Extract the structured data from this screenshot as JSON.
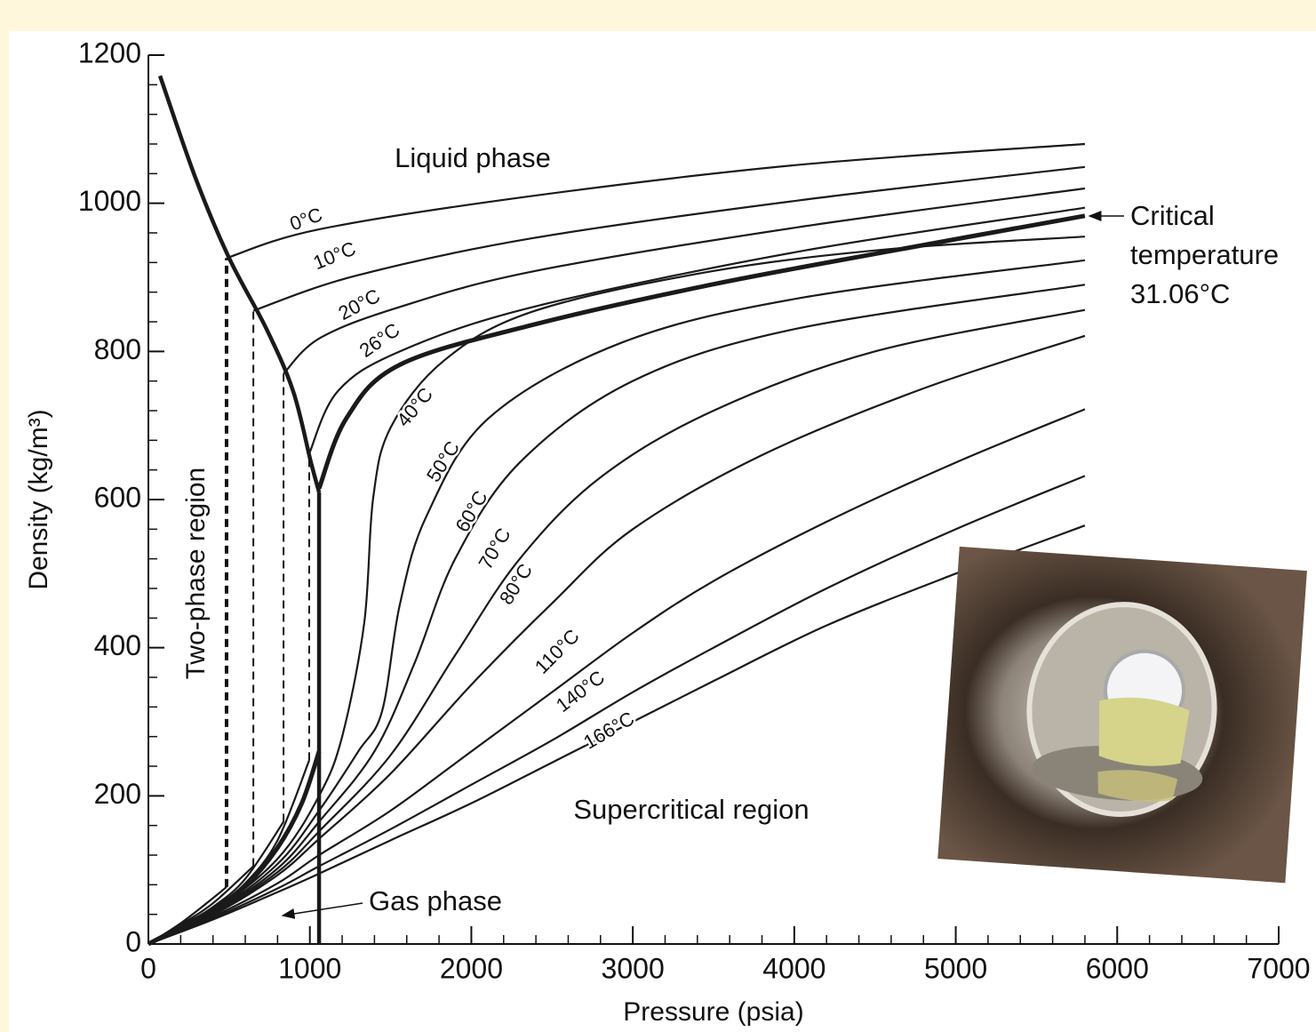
{
  "chart_data": {
    "type": "line",
    "xlabel": "Pressure (psia)",
    "ylabel": "Density (kg/m³)",
    "xlim": [
      0,
      7000
    ],
    "ylim": [
      0,
      1200
    ],
    "xticks": [
      0,
      1000,
      2000,
      3000,
      4000,
      5000,
      6000,
      7000
    ],
    "yticks": [
      0,
      200,
      400,
      600,
      800,
      1000,
      1200
    ],
    "xticks_minor": [
      200,
      400,
      600,
      800,
      1200,
      1400,
      1600,
      1800,
      2200,
      2400,
      2600,
      2800,
      3200,
      3400,
      3600,
      3800,
      4200,
      4400,
      4600,
      4800,
      5200,
      5400,
      5600,
      5800,
      6200,
      6400,
      6600,
      6800
    ],
    "yticks_minor": [
      40,
      80,
      120,
      160,
      240,
      280,
      320,
      360,
      440,
      480,
      520,
      560,
      640,
      680,
      720,
      760,
      840,
      880,
      920,
      960,
      1040,
      1080,
      1120,
      1160
    ],
    "color": "#1a1a1a",
    "series": [
      {
        "name": "0°C",
        "x": [
          0,
          200,
          400,
          484,
          null,
          484,
          1062,
          2383,
          4034,
          5800
        ],
        "values": [
          0,
          28,
          62,
          77,
          null,
          926,
          965,
          1010,
          1052,
          1080
        ]
      },
      {
        "name": "10°C",
        "x": [
          0,
          200,
          400,
          650,
          null,
          650,
          1282,
          2383,
          4034,
          5800
        ],
        "values": [
          0,
          26,
          55,
          105,
          null,
          855,
          902,
          953,
          1004,
          1049
        ]
      },
      {
        "name": "20°C",
        "x": [
          0,
          200,
          400,
          600,
          837,
          null,
          837,
          1062,
          1557,
          2383,
          4034,
          5800
        ],
        "values": [
          0,
          24,
          50,
          88,
          165,
          null,
          770,
          818,
          860,
          908,
          968,
          1020
        ]
      },
      {
        "name": "26°C",
        "x": [
          0,
          200,
          400,
          600,
          800,
          996,
          null,
          996,
          1172,
          1557,
          2383,
          4034,
          5800
        ],
        "values": [
          0,
          23,
          48,
          82,
          140,
          248,
          null,
          662,
          746,
          800,
          860,
          935,
          994
        ]
      },
      {
        "name": "40°C",
        "x": [
          0,
          400,
          800,
          1057,
          1200,
          1337,
          1392,
          1502,
          1833,
          2383,
          3484,
          4584,
          5800
        ],
        "values": [
          0,
          44,
          115,
          200,
          280,
          434,
          602,
          698,
          788,
          854,
          908,
          938,
          955
        ]
      },
      {
        "name": "50°C",
        "x": [
          0,
          400,
          800,
          1057,
          1300,
          1447,
          1557,
          1723,
          2108,
          2933,
          4034,
          5800
        ],
        "values": [
          0,
          42,
          108,
          180,
          260,
          314,
          458,
          578,
          710,
          812,
          872,
          923
        ]
      },
      {
        "name": "60°C",
        "x": [
          0,
          400,
          800,
          1057,
          1400,
          1650,
          1900,
          2300,
          3000,
          4000,
          5800
        ],
        "values": [
          0,
          41,
          102,
          165,
          260,
          380,
          520,
          650,
          760,
          830,
          890
        ]
      },
      {
        "name": "70°C",
        "x": [
          0,
          400,
          800,
          1057,
          1500,
          1900,
          2300,
          2800,
          3500,
          4500,
          5800
        ],
        "values": [
          0,
          40,
          97,
          152,
          255,
          390,
          520,
          630,
          720,
          800,
          856
        ]
      },
      {
        "name": "80°C",
        "x": [
          0,
          400,
          800,
          1057,
          1500,
          2000,
          2500,
          3000,
          3800,
          4800,
          5800
        ],
        "values": [
          0,
          39,
          93,
          142,
          230,
          350,
          460,
          560,
          660,
          750,
          821
        ]
      },
      {
        "name": "110°C",
        "x": [
          0,
          400,
          800,
          1057,
          1500,
          2000,
          2500,
          3000,
          3500,
          4200,
          5000,
          5800
        ],
        "values": [
          0,
          37,
          82,
          120,
          180,
          260,
          340,
          420,
          490,
          570,
          650,
          722
        ]
      },
      {
        "name": "140°C",
        "x": [
          0,
          400,
          800,
          1057,
          1500,
          2000,
          2500,
          3000,
          3500,
          4200,
          5000,
          5800
        ],
        "values": [
          0,
          35,
          75,
          105,
          155,
          215,
          275,
          340,
          400,
          480,
          560,
          632
        ]
      },
      {
        "name": "166°C",
        "x": [
          0,
          400,
          800,
          1057,
          1500,
          2000,
          2500,
          3000,
          3500,
          4200,
          5000,
          5800
        ],
        "values": [
          0,
          33,
          70,
          95,
          140,
          190,
          245,
          300,
          355,
          430,
          500,
          565
        ]
      }
    ],
    "critical_isotherm": {
      "x": [
        0,
        200,
        400,
        600,
        800,
        950,
        1057,
        null,
        1057,
        1227,
        1557,
        2383,
        3484,
        4584,
        5800
      ],
      "values": [
        0,
        23,
        46,
        78,
        130,
        190,
        260,
        null,
        615,
        710,
        782,
        836,
        890,
        935,
        983
      ]
    },
    "saturation_curve": {
      "x": [
        72,
        292,
        500,
        732,
        897,
        1007,
        1057
      ],
      "values": [
        1172,
        1034,
        926,
        830,
        746,
        650,
        610
      ]
    },
    "critical_pressure_line": {
      "x": [
        1057,
        1057
      ],
      "values": [
        0,
        610
      ]
    },
    "tie_lines": [
      {
        "x": 484,
        "values": [
          77,
          926
        ]
      },
      {
        "x": 650,
        "values": [
          105,
          855
        ]
      },
      {
        "x": 837,
        "values": [
          165,
          770
        ]
      },
      {
        "x": 996,
        "values": [
          248,
          662
        ]
      }
    ],
    "annotations": {
      "liquid": "Liquid phase",
      "two_phase": "Two-phase region",
      "supercritical": "Supercritical region",
      "gas": "Gas phase",
      "critical": [
        "Critical",
        "temperature",
        "31.06°C"
      ]
    }
  }
}
